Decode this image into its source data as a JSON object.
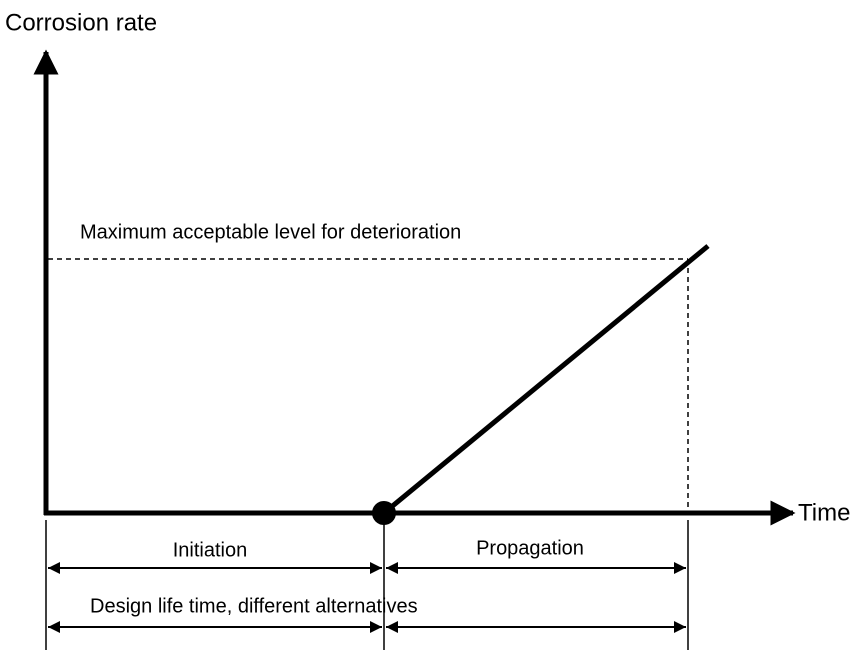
{
  "axes": {
    "y_label": "Corrosion rate",
    "x_label": "Time"
  },
  "threshold_label": "Maximum acceptable level for deterioration",
  "phases": [
    {
      "label": "Initiation"
    },
    {
      "label": "Propagation"
    }
  ],
  "design_life_label": "Design life time, different alternatives"
}
